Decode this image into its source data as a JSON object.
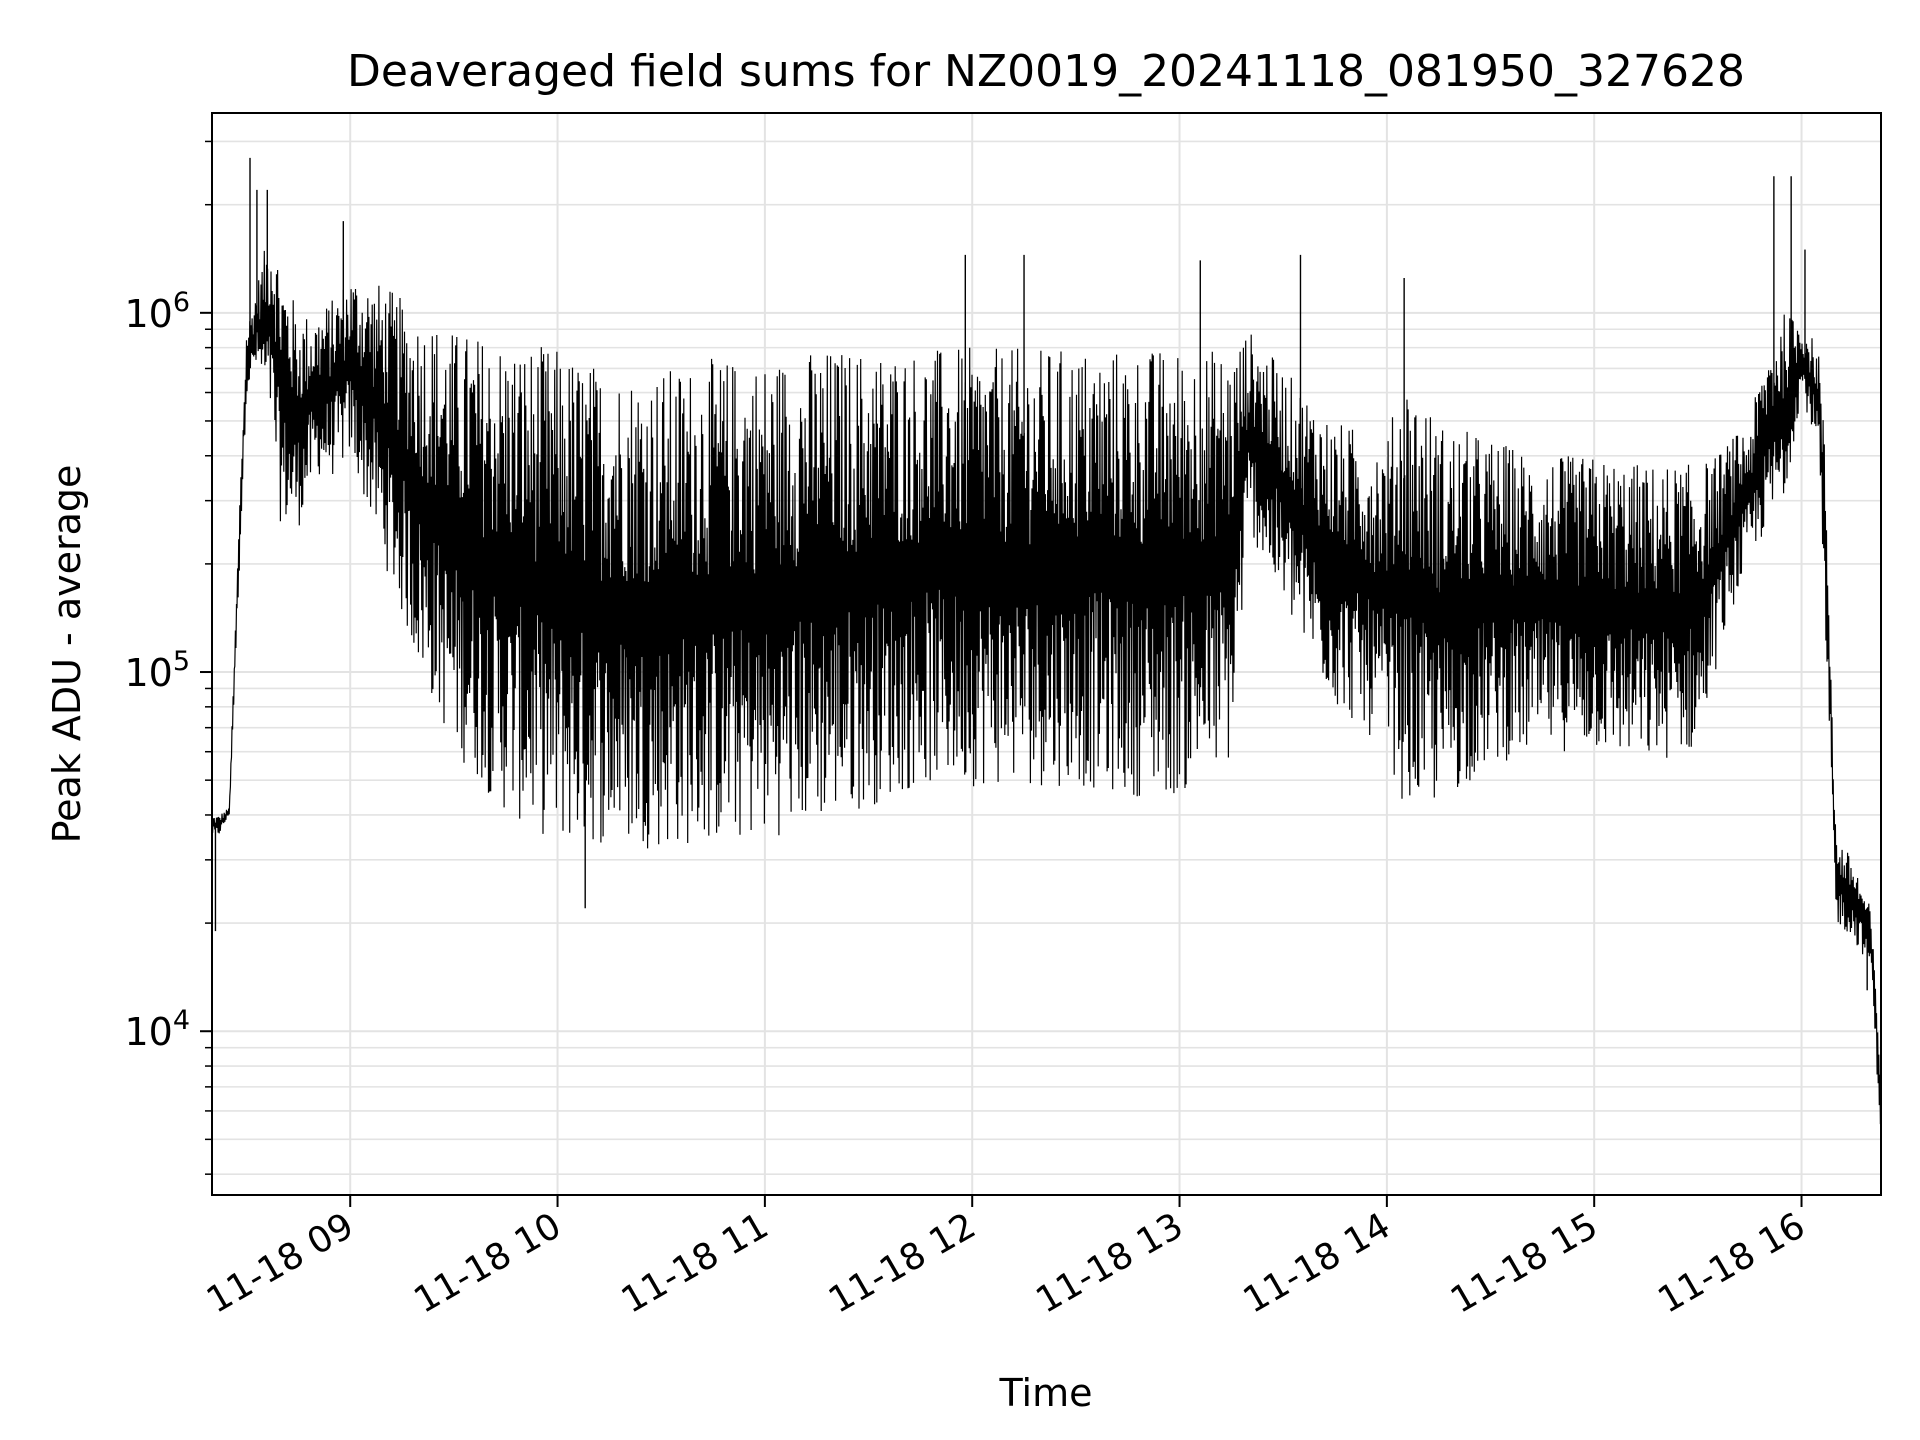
{
  "chart_data": {
    "type": "line",
    "title": "Deaveraged field sums for NZ0019_20241118_081950_327628",
    "xlabel": "Time",
    "ylabel": "Peak ADU - average",
    "x_range": [
      "2024-11-18 08:20",
      "2024-11-18 16:23"
    ],
    "y_scale": "log",
    "ylim": [
      3500,
      3600000
    ],
    "grid": true,
    "line_color": "#000000",
    "x_ticks": [
      {
        "t": "2024-11-18 09:00",
        "label": "11-18 09"
      },
      {
        "t": "2024-11-18 10:00",
        "label": "11-18 10"
      },
      {
        "t": "2024-11-18 11:00",
        "label": "11-18 11"
      },
      {
        "t": "2024-11-18 12:00",
        "label": "11-18 12"
      },
      {
        "t": "2024-11-18 13:00",
        "label": "11-18 13"
      },
      {
        "t": "2024-11-18 14:00",
        "label": "11-18 14"
      },
      {
        "t": "2024-11-18 15:00",
        "label": "11-18 15"
      },
      {
        "t": "2024-11-18 16:00",
        "label": "11-18 16"
      }
    ],
    "y_ticks": [
      {
        "value": 10000,
        "base": "10",
        "exp": "4"
      },
      {
        "value": 100000,
        "base": "10",
        "exp": "5"
      },
      {
        "value": 1000000,
        "base": "10",
        "exp": "6"
      }
    ],
    "series": [
      {
        "envelope": {
          "x": [
            "2024-11-18 08:20",
            "2024-11-18 08:22",
            "2024-11-18 08:25",
            "2024-11-18 08:28",
            "2024-11-18 08:30",
            "2024-11-18 08:33",
            "2024-11-18 08:37",
            "2024-11-18 08:40",
            "2024-11-18 08:45",
            "2024-11-18 08:50",
            "2024-11-18 08:55",
            "2024-11-18 09:00",
            "2024-11-18 09:10",
            "2024-11-18 09:20",
            "2024-11-18 09:30",
            "2024-11-18 09:45",
            "2024-11-18 10:00",
            "2024-11-18 10:15",
            "2024-11-18 10:30",
            "2024-11-18 10:45",
            "2024-11-18 11:00",
            "2024-11-18 11:15",
            "2024-11-18 11:30",
            "2024-11-18 11:45",
            "2024-11-18 12:00",
            "2024-11-18 12:15",
            "2024-11-18 12:30",
            "2024-11-18 12:45",
            "2024-11-18 13:00",
            "2024-11-18 13:15",
            "2024-11-18 13:20",
            "2024-11-18 13:30",
            "2024-11-18 13:45",
            "2024-11-18 14:00",
            "2024-11-18 14:05",
            "2024-11-18 14:15",
            "2024-11-18 14:30",
            "2024-11-18 14:45",
            "2024-11-18 15:00",
            "2024-11-18 15:15",
            "2024-11-18 15:30",
            "2024-11-18 15:35",
            "2024-11-18 15:40",
            "2024-11-18 15:45",
            "2024-11-18 15:50",
            "2024-11-18 15:55",
            "2024-11-18 16:00",
            "2024-11-18 16:05",
            "2024-11-18 16:07",
            "2024-11-18 16:10",
            "2024-11-18 16:15",
            "2024-11-18 16:20",
            "2024-11-18 16:23"
          ],
          "low": [
            35000,
            35000,
            40000,
            200000,
            600000,
            700000,
            500000,
            250000,
            250000,
            350000,
            350000,
            400000,
            200000,
            100000,
            60000,
            40000,
            33000,
            33000,
            32000,
            33000,
            34000,
            38000,
            42000,
            48000,
            48000,
            48000,
            48000,
            45000,
            45000,
            55000,
            250000,
            150000,
            80000,
            60000,
            42000,
            42000,
            55000,
            60000,
            60000,
            55000,
            60000,
            100000,
            150000,
            200000,
            250000,
            300000,
            600000,
            400000,
            100000,
            20000,
            18000,
            15000,
            5000
          ],
          "high": [
            40000,
            40000,
            42000,
            300000,
            900000,
            1200000,
            1800000,
            1400000,
            1000000,
            1000000,
            1100000,
            1300000,
            1200000,
            1000000,
            900000,
            850000,
            800000,
            700000,
            700000,
            750000,
            750000,
            800000,
            800000,
            800000,
            800000,
            800000,
            800000,
            800000,
            800000,
            800000,
            900000,
            700000,
            500000,
            450000,
            700000,
            500000,
            450000,
            400000,
            400000,
            380000,
            380000,
            400000,
            450000,
            500000,
            800000,
            1000000,
            950000,
            800000,
            400000,
            35000,
            30000,
            22000,
            8000
          ]
        },
        "spikes": [
          {
            "t": "2024-11-18 08:31",
            "v": 2700000
          },
          {
            "t": "2024-11-18 08:33",
            "v": 2200000
          },
          {
            "t": "2024-11-18 08:36",
            "v": 2200000
          },
          {
            "t": "2024-11-18 08:58",
            "v": 1800000
          },
          {
            "t": "2024-11-18 12:15",
            "v": 1450000
          },
          {
            "t": "2024-11-18 11:58",
            "v": 1450000
          },
          {
            "t": "2024-11-18 13:06",
            "v": 1400000
          },
          {
            "t": "2024-11-18 13:35",
            "v": 1450000
          },
          {
            "t": "2024-11-18 14:05",
            "v": 1250000
          },
          {
            "t": "2024-11-18 15:52",
            "v": 2400000
          },
          {
            "t": "2024-11-18 15:57",
            "v": 2400000
          },
          {
            "t": "2024-11-18 16:01",
            "v": 1500000
          },
          {
            "t": "2024-11-18 10:08",
            "v": 22000
          },
          {
            "t": "2024-11-18 08:21",
            "v": 19000
          },
          {
            "t": "2024-11-18 16:19",
            "v": 13000
          }
        ]
      }
    ]
  }
}
